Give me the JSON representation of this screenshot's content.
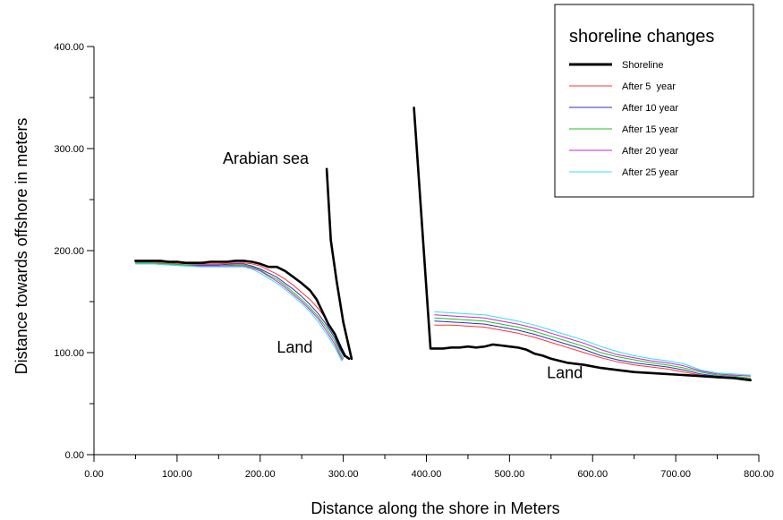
{
  "chart_data": {
    "type": "line",
    "xlabel": "Distance along the shore in Meters",
    "ylabel": "Distance towards offshore in meters",
    "xlim": [
      0,
      800
    ],
    "ylim": [
      0,
      400
    ],
    "x_ticks": [
      "0.00",
      "100.00",
      "200.00",
      "300.00",
      "400.00",
      "500.00",
      "600.00",
      "700.00",
      "800.00"
    ],
    "y_ticks": [
      "0.00",
      "100.00",
      "200.00",
      "300.00",
      "400.00"
    ],
    "grid": false,
    "legend": {
      "title": "shoreline changes",
      "position": "top-right"
    },
    "annotations": [
      {
        "text": "Arabian sea",
        "x": 155,
        "y": 285
      },
      {
        "text": "Land",
        "x": 220,
        "y": 100
      },
      {
        "text": "Land",
        "x": 545,
        "y": 75
      }
    ],
    "series": [
      {
        "name": "Shoreline",
        "color": "#000000",
        "segments": [
          [
            [
              50,
              190
            ],
            [
              60,
              190
            ],
            [
              70,
              190
            ],
            [
              80,
              190
            ],
            [
              90,
              189
            ],
            [
              100,
              189
            ],
            [
              110,
              188
            ],
            [
              120,
              188
            ],
            [
              130,
              188
            ],
            [
              140,
              189
            ],
            [
              150,
              189
            ],
            [
              160,
              189
            ],
            [
              170,
              190
            ],
            [
              180,
              190
            ],
            [
              190,
              189
            ],
            [
              200,
              187
            ],
            [
              210,
              184
            ],
            [
              220,
              184
            ],
            [
              230,
              180
            ],
            [
              240,
              174
            ],
            [
              250,
              168
            ],
            [
              260,
              161
            ],
            [
              268,
              152
            ],
            [
              275,
              140
            ],
            [
              282,
              128
            ],
            [
              290,
              118
            ],
            [
              297,
              105
            ],
            [
              302,
              97
            ],
            [
              307,
              94
            ]
          ],
          [
            [
              280,
              280
            ],
            [
              285,
              210
            ],
            [
              292,
              170
            ],
            [
              300,
              130
            ],
            [
              310,
              94
            ]
          ],
          [
            [
              385,
              340
            ],
            [
              405,
              104
            ],
            [
              420,
              104
            ],
            [
              430,
              105
            ],
            [
              440,
              105
            ],
            [
              450,
              106
            ],
            [
              460,
              105
            ],
            [
              470,
              106
            ],
            [
              480,
              108
            ],
            [
              490,
              107
            ],
            [
              500,
              106
            ],
            [
              510,
              105
            ],
            [
              520,
              103
            ],
            [
              530,
              99
            ],
            [
              540,
              97
            ],
            [
              550,
              94
            ],
            [
              560,
              92
            ],
            [
              570,
              90
            ],
            [
              590,
              88
            ],
            [
              610,
              85
            ],
            [
              630,
              83
            ],
            [
              650,
              81
            ],
            [
              670,
              80
            ],
            [
              690,
              79
            ],
            [
              710,
              78
            ],
            [
              730,
              77
            ],
            [
              750,
              76
            ],
            [
              770,
              75
            ],
            [
              790,
              73
            ]
          ]
        ]
      },
      {
        "name": "After 5  year",
        "color": "#ff3030",
        "segments": [
          [
            [
              50,
              189
            ],
            [
              70,
              189
            ],
            [
              90,
              188
            ],
            [
              110,
              187
            ],
            [
              130,
              187
            ],
            [
              150,
              187
            ],
            [
              170,
              188
            ],
            [
              180,
              188
            ],
            [
              190,
              187
            ],
            [
              200,
              185
            ],
            [
              210,
              181
            ],
            [
              220,
              177
            ],
            [
              230,
              172
            ],
            [
              240,
              166
            ],
            [
              250,
              159
            ],
            [
              260,
              152
            ],
            [
              270,
              143
            ],
            [
              280,
              132
            ],
            [
              290,
              118
            ],
            [
              297,
              106
            ],
            [
              302,
              98
            ]
          ],
          [
            [
              410,
              127
            ],
            [
              430,
              127
            ],
            [
              450,
              126
            ],
            [
              470,
              125
            ],
            [
              490,
              122
            ],
            [
              510,
              119
            ],
            [
              530,
              115
            ],
            [
              550,
              110
            ],
            [
              570,
              105
            ],
            [
              590,
              100
            ],
            [
              610,
              95
            ],
            [
              630,
              91
            ],
            [
              650,
              88
            ],
            [
              670,
              86
            ],
            [
              690,
              84
            ],
            [
              710,
              81
            ],
            [
              730,
              78
            ],
            [
              750,
              76
            ],
            [
              770,
              75
            ],
            [
              790,
              73
            ]
          ]
        ]
      },
      {
        "name": "After 10 year",
        "color": "#3030b0",
        "segments": [
          [
            [
              50,
              188
            ],
            [
              70,
              188
            ],
            [
              90,
              187
            ],
            [
              110,
              186
            ],
            [
              130,
              186
            ],
            [
              150,
              186
            ],
            [
              170,
              187
            ],
            [
              180,
              187
            ],
            [
              190,
              185
            ],
            [
              200,
              182
            ],
            [
              210,
              178
            ],
            [
              220,
              174
            ],
            [
              230,
              168
            ],
            [
              240,
              162
            ],
            [
              250,
              155
            ],
            [
              260,
              147
            ],
            [
              270,
              138
            ],
            [
              280,
              127
            ],
            [
              290,
              114
            ],
            [
              296,
              103
            ],
            [
              301,
              96
            ]
          ],
          [
            [
              410,
              131
            ],
            [
              430,
              130
            ],
            [
              450,
              129
            ],
            [
              470,
              128
            ],
            [
              490,
              125
            ],
            [
              510,
              122
            ],
            [
              530,
              118
            ],
            [
              550,
              113
            ],
            [
              570,
              108
            ],
            [
              590,
              103
            ],
            [
              610,
              97
            ],
            [
              630,
              93
            ],
            [
              650,
              90
            ],
            [
              670,
              88
            ],
            [
              690,
              86
            ],
            [
              710,
              83
            ],
            [
              730,
              79
            ],
            [
              750,
              77
            ],
            [
              770,
              76
            ],
            [
              790,
              74
            ]
          ]
        ]
      },
      {
        "name": "After 15 year",
        "color": "#20c020",
        "segments": [
          [
            [
              50,
              188
            ],
            [
              70,
              188
            ],
            [
              90,
              187
            ],
            [
              110,
              186
            ],
            [
              130,
              185
            ],
            [
              150,
              185
            ],
            [
              170,
              186
            ],
            [
              180,
              186
            ],
            [
              190,
              184
            ],
            [
              200,
              181
            ],
            [
              210,
              176
            ],
            [
              220,
              172
            ],
            [
              230,
              166
            ],
            [
              240,
              159
            ],
            [
              250,
              152
            ],
            [
              260,
              144
            ],
            [
              270,
              135
            ],
            [
              280,
              124
            ],
            [
              290,
              111
            ],
            [
              296,
              100
            ],
            [
              300,
              94
            ]
          ],
          [
            [
              410,
              134
            ],
            [
              430,
              133
            ],
            [
              450,
              132
            ],
            [
              470,
              131
            ],
            [
              490,
              128
            ],
            [
              510,
              125
            ],
            [
              530,
              121
            ],
            [
              550,
              116
            ],
            [
              570,
              111
            ],
            [
              590,
              106
            ],
            [
              610,
              100
            ],
            [
              630,
              96
            ],
            [
              650,
              93
            ],
            [
              670,
              90
            ],
            [
              690,
              88
            ],
            [
              710,
              85
            ],
            [
              730,
              81
            ],
            [
              750,
              78
            ],
            [
              770,
              77
            ],
            [
              790,
              75
            ]
          ]
        ]
      },
      {
        "name": "After 20 year",
        "color": "#d020d0",
        "segments": [
          [
            [
              50,
              187
            ],
            [
              70,
              187
            ],
            [
              90,
              186
            ],
            [
              110,
              185
            ],
            [
              130,
              185
            ],
            [
              150,
              185
            ],
            [
              170,
              185
            ],
            [
              180,
              185
            ],
            [
              190,
              183
            ],
            [
              200,
              180
            ],
            [
              210,
              175
            ],
            [
              220,
              170
            ],
            [
              230,
              164
            ],
            [
              240,
              157
            ],
            [
              250,
              150
            ],
            [
              260,
              142
            ],
            [
              270,
              133
            ],
            [
              280,
              121
            ],
            [
              290,
              108
            ],
            [
              295,
              99
            ],
            [
              299,
              93
            ]
          ],
          [
            [
              410,
              137
            ],
            [
              430,
              136
            ],
            [
              450,
              135
            ],
            [
              470,
              134
            ],
            [
              490,
              131
            ],
            [
              510,
              128
            ],
            [
              530,
              124
            ],
            [
              550,
              119
            ],
            [
              570,
              114
            ],
            [
              590,
              109
            ],
            [
              610,
              103
            ],
            [
              630,
              98
            ],
            [
              650,
              95
            ],
            [
              670,
              92
            ],
            [
              690,
              90
            ],
            [
              710,
              87
            ],
            [
              730,
              82
            ],
            [
              750,
              79
            ],
            [
              770,
              78
            ],
            [
              790,
              77
            ]
          ]
        ]
      },
      {
        "name": "After 25 year",
        "color": "#30e0f0",
        "segments": [
          [
            [
              50,
              187
            ],
            [
              70,
              187
            ],
            [
              90,
              186
            ],
            [
              110,
              185
            ],
            [
              130,
              184
            ],
            [
              150,
              184
            ],
            [
              170,
              184
            ],
            [
              180,
              184
            ],
            [
              190,
              182
            ],
            [
              200,
              178
            ],
            [
              210,
              173
            ],
            [
              220,
              168
            ],
            [
              230,
              162
            ],
            [
              240,
              155
            ],
            [
              250,
              148
            ],
            [
              260,
              140
            ],
            [
              270,
              130
            ],
            [
              280,
              118
            ],
            [
              290,
              105
            ],
            [
              295,
              97
            ],
            [
              298,
              92
            ]
          ],
          [
            [
              410,
              140
            ],
            [
              430,
              139
            ],
            [
              450,
              138
            ],
            [
              470,
              137
            ],
            [
              490,
              134
            ],
            [
              510,
              131
            ],
            [
              530,
              127
            ],
            [
              550,
              122
            ],
            [
              570,
              117
            ],
            [
              590,
              112
            ],
            [
              610,
              106
            ],
            [
              630,
              101
            ],
            [
              650,
              97
            ],
            [
              670,
              94
            ],
            [
              690,
              92
            ],
            [
              710,
              89
            ],
            [
              730,
              83
            ],
            [
              750,
              80
            ],
            [
              770,
              79
            ],
            [
              790,
              78
            ]
          ]
        ]
      }
    ]
  }
}
